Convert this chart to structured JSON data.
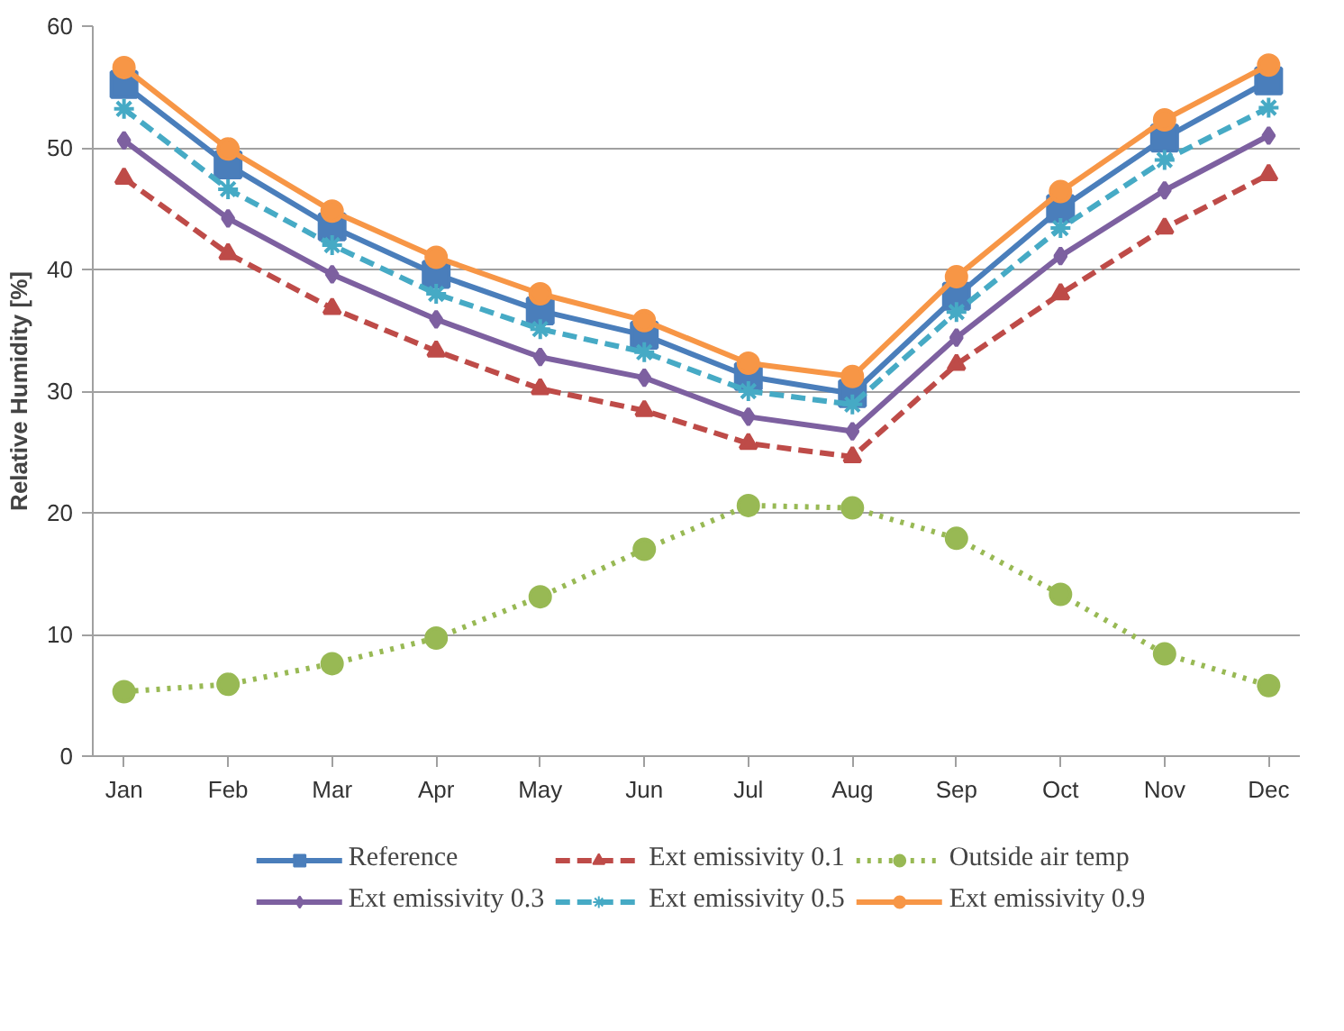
{
  "chart_data": {
    "type": "line",
    "ylabel": "Relative Humidity [%]",
    "categories": [
      "Jan",
      "Feb",
      "Mar",
      "Apr",
      "May",
      "Jun",
      "Jul",
      "Aug",
      "Sep",
      "Oct",
      "Nov",
      "Dec"
    ],
    "ylim": [
      0,
      60
    ],
    "yticks": [
      0,
      10,
      20,
      30,
      40,
      50,
      60
    ],
    "grid": "y",
    "legend": "bottom",
    "series": [
      {
        "name": "Reference",
        "color": "#4a7ebb",
        "marker": "square",
        "line_style": "solid",
        "values": [
          55.2,
          48.6,
          43.5,
          39.6,
          36.6,
          34.6,
          31.2,
          29.8,
          37.8,
          45.0,
          50.8,
          55.5
        ]
      },
      {
        "name": "Ext emissivity 0.1",
        "color": "#be4b48",
        "marker": "triangle",
        "line_style": "dashed",
        "values": [
          47.5,
          41.3,
          36.8,
          33.3,
          30.2,
          28.4,
          25.7,
          24.6,
          32.2,
          38.0,
          43.4,
          47.8
        ]
      },
      {
        "name": "Outside air temp",
        "color": "#98b954",
        "marker": "circle",
        "line_style": "dotted",
        "values": [
          5.3,
          5.9,
          7.6,
          9.7,
          13.1,
          17.0,
          20.6,
          20.4,
          17.9,
          13.3,
          8.4,
          5.8
        ]
      },
      {
        "name": "Ext emissivity 0.3",
        "color": "#7d60a0",
        "marker": "diamond",
        "line_style": "solid",
        "values": [
          50.6,
          44.2,
          39.6,
          35.9,
          32.8,
          31.1,
          27.9,
          26.7,
          34.4,
          41.1,
          46.5,
          51.0
        ]
      },
      {
        "name": "Ext emissivity 0.5",
        "color": "#46aac5",
        "marker": "cross",
        "line_style": "dashed",
        "values": [
          53.2,
          46.6,
          42.0,
          38.0,
          35.1,
          33.2,
          30.0,
          28.9,
          36.5,
          43.4,
          49.0,
          53.3
        ]
      },
      {
        "name": "Ext emissivity 0.9",
        "color": "#f79646",
        "marker": "circle",
        "line_style": "solid",
        "values": [
          56.6,
          49.9,
          44.8,
          41.0,
          38.0,
          35.8,
          32.3,
          31.2,
          39.4,
          46.4,
          52.3,
          56.8
        ]
      }
    ]
  }
}
